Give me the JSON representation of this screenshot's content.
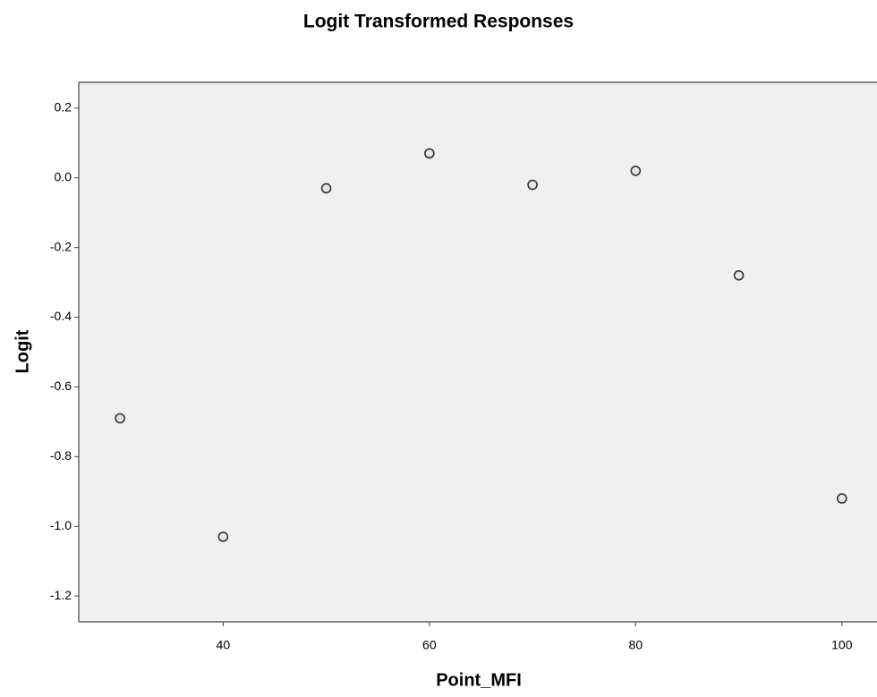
{
  "chart_data": {
    "type": "scatter",
    "title": "Logit Transformed Responses",
    "x_label": "Point_MFI",
    "y_label": "Logit",
    "x": [
      30,
      40,
      50,
      60,
      70,
      80,
      90,
      100
    ],
    "values": [
      -0.69,
      -1.03,
      -0.03,
      0.07,
      -0.02,
      0.02,
      -0.28,
      -0.92
    ],
    "color": "#333333",
    "xlim": [
      26,
      103.4
    ],
    "ylim": [
      -1.274,
      0.274
    ],
    "xticks": [
      40,
      60,
      80,
      100
    ],
    "yticks": [
      0.2,
      {
        "value": 0,
        "label": "0.0"
      },
      -0.2,
      -0.4,
      -0.6,
      -0.8,
      {
        "value": -1,
        "label": "-1.0"
      },
      -1.2
    ],
    "grid": false
  }
}
